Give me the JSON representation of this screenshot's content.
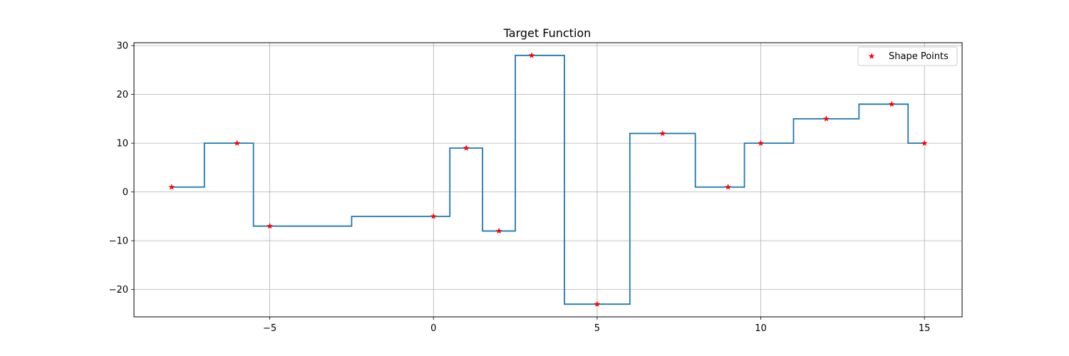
{
  "chart_data": {
    "type": "line",
    "title": "Target Function",
    "xlabel": "",
    "ylabel": "",
    "xlim": [
      -9.15,
      16.15
    ],
    "ylim": [
      -25.6,
      30.6
    ],
    "xticks": [
      -5,
      0,
      5,
      10,
      15
    ],
    "yticks": [
      -20,
      -10,
      0,
      10,
      20,
      30
    ],
    "xtick_labels": [
      "−5",
      "0",
      "5",
      "10",
      "15"
    ],
    "ytick_labels": [
      "−20",
      "−10",
      "0",
      "10",
      "20",
      "30"
    ],
    "grid": true,
    "legend_position": "top-right",
    "series": [
      {
        "kind": "step",
        "color": "#1f77b4",
        "x": [
          -8,
          -7,
          -7,
          -5.5,
          -5.5,
          -2.5,
          -2.5,
          0.5,
          0.5,
          1.5,
          1.5,
          2.5,
          2.5,
          4,
          4,
          6,
          6,
          8,
          8,
          9.5,
          9.5,
          11,
          11,
          13,
          13,
          14.5,
          14.5,
          15
        ],
        "y": [
          1,
          1,
          10,
          10,
          -7,
          -7,
          -5,
          -5,
          9,
          9,
          -8,
          -8,
          28,
          28,
          -23,
          -23,
          12,
          12,
          1,
          1,
          10,
          10,
          15,
          15,
          18,
          18,
          10,
          10
        ]
      },
      {
        "kind": "scatter",
        "name": "Shape Points",
        "marker": "star",
        "color": "#ff0000",
        "x": [
          -8,
          -6,
          -5,
          0,
          1,
          2,
          3,
          5,
          7,
          9,
          10,
          12,
          14,
          15
        ],
        "y": [
          1,
          10,
          -7,
          -5,
          9,
          -8,
          28,
          -23,
          12,
          1,
          10,
          15,
          18,
          10
        ]
      }
    ]
  }
}
